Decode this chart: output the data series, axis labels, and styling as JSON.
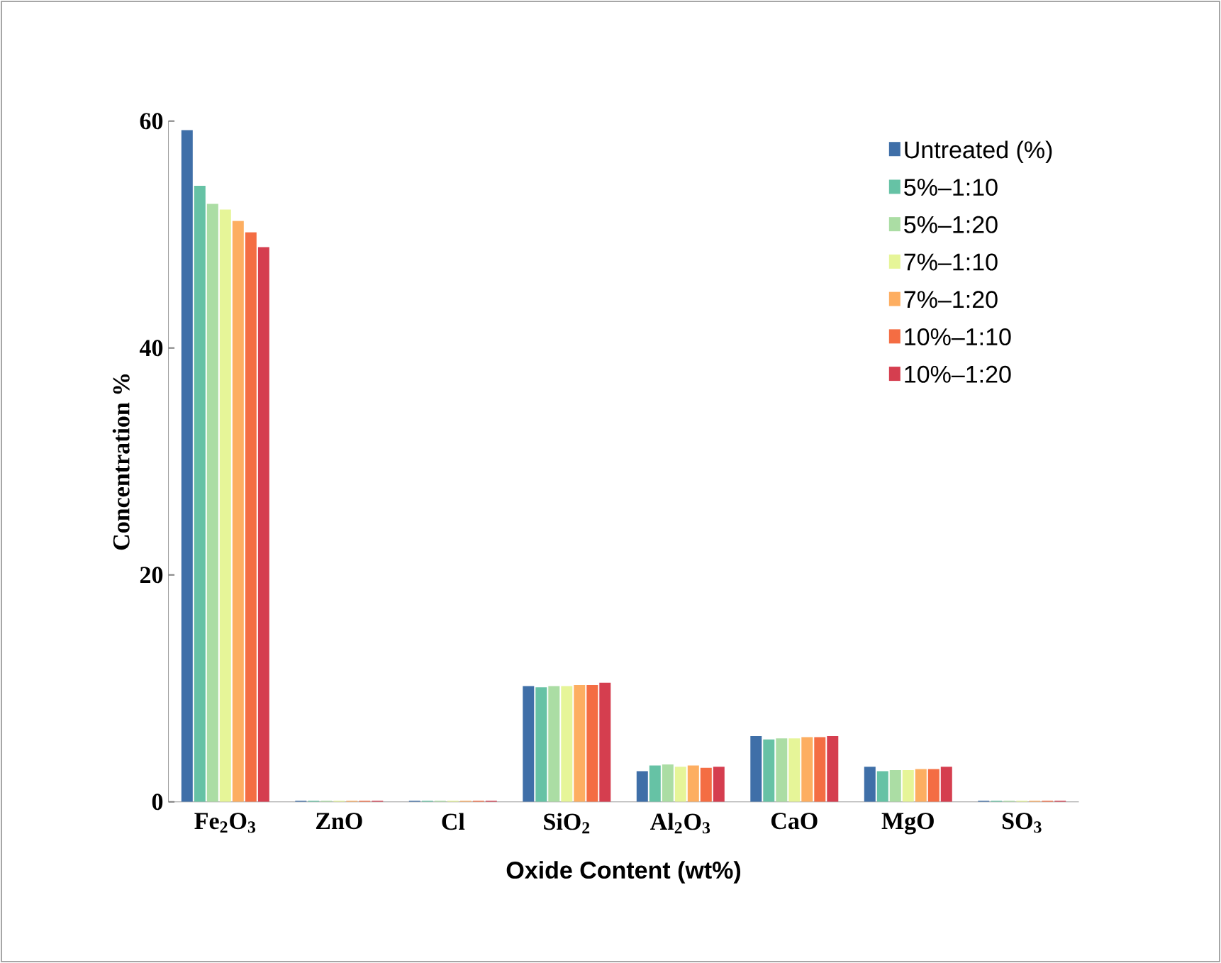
{
  "chart_data": {
    "type": "bar",
    "xlabel": "Oxide Content (wt%)",
    "ylabel": "Concentration %",
    "categories": [
      "Fe$_{2}$O$_{3}$",
      "ZnO",
      "Cl",
      "SiO$_{2}$",
      "Al$_{2}$O$_{3}$",
      "CaO",
      "MgO",
      "SO$_{3}$"
    ],
    "series": [
      {
        "name": "Untreated (%)",
        "color": "#3f6fa8",
        "values": [
          59.2,
          0.1,
          0.1,
          10.2,
          2.7,
          5.8,
          3.1,
          0.1
        ]
      },
      {
        "name": "5%–1:10",
        "color": "#66c2a5",
        "values": [
          54.3,
          0.1,
          0.1,
          10.1,
          3.2,
          5.5,
          2.7,
          0.1
        ]
      },
      {
        "name": "5%–1:20",
        "color": "#abdda4",
        "values": [
          52.7,
          0.1,
          0.1,
          10.2,
          3.3,
          5.6,
          2.8,
          0.1
        ]
      },
      {
        "name": "7%–1:10",
        "color": "#e6f598",
        "values": [
          52.2,
          0.1,
          0.1,
          10.2,
          3.1,
          5.6,
          2.8,
          0.1
        ]
      },
      {
        "name": "7%–1:20",
        "color": "#fdae61",
        "values": [
          51.2,
          0.1,
          0.1,
          10.3,
          3.2,
          5.7,
          2.9,
          0.1
        ]
      },
      {
        "name": "10%–1:10",
        "color": "#f46d43",
        "values": [
          50.2,
          0.1,
          0.1,
          10.3,
          3.0,
          5.7,
          2.9,
          0.1
        ]
      },
      {
        "name": "10%–1:20",
        "color": "#d53e4f",
        "values": [
          48.9,
          0.1,
          0.1,
          10.5,
          3.1,
          5.8,
          3.1,
          0.1
        ]
      }
    ],
    "ylim": [
      0,
      60
    ],
    "yticks": [
      0,
      20,
      40,
      60
    ],
    "grid": false,
    "legend": "top right"
  }
}
